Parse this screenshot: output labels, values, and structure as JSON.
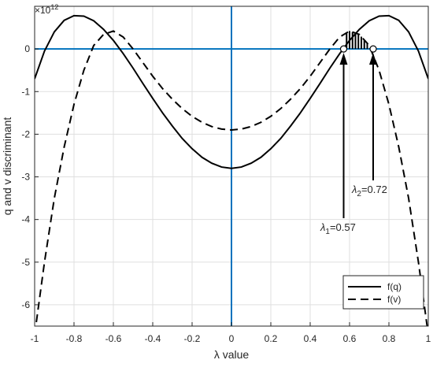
{
  "chart_data": {
    "type": "line",
    "xlabel": "λ value",
    "ylabel": "q and v discriminant",
    "y_exponent": {
      "base": "×10",
      "power": "12"
    },
    "x": [
      -1,
      -0.95,
      -0.9,
      -0.85,
      -0.8,
      -0.75,
      -0.7,
      -0.65,
      -0.6,
      -0.55,
      -0.5,
      -0.45,
      -0.4,
      -0.35,
      -0.3,
      -0.25,
      -0.2,
      -0.15,
      -0.1,
      -0.05,
      0,
      0.05,
      0.1,
      0.15,
      0.2,
      0.25,
      0.3,
      0.35,
      0.4,
      0.45,
      0.5,
      0.55,
      0.6,
      0.65,
      0.7,
      0.75,
      0.8,
      0.85,
      0.9,
      0.95,
      1
    ],
    "series": [
      {
        "name": "f(q)",
        "color": "#000000",
        "dash": false,
        "values": [
          -0.7,
          -0.05,
          0.4,
          0.67,
          0.78,
          0.77,
          0.66,
          0.46,
          0.2,
          -0.11,
          -0.45,
          -0.81,
          -1.16,
          -1.5,
          -1.81,
          -2.1,
          -2.34,
          -2.54,
          -2.68,
          -2.77,
          -2.8,
          -2.77,
          -2.68,
          -2.54,
          -2.34,
          -2.1,
          -1.81,
          -1.5,
          -1.16,
          -0.81,
          -0.45,
          -0.11,
          0.2,
          0.46,
          0.66,
          0.77,
          0.78,
          0.67,
          0.4,
          -0.05,
          -0.7
        ]
      },
      {
        "name": "f(v)",
        "color": "#000000",
        "dash": true,
        "values": [
          -6.7,
          -5.0,
          -3.5,
          -2.3,
          -1.3,
          -0.5,
          0.08,
          0.34,
          0.42,
          0.28,
          0.0,
          -0.32,
          -0.64,
          -0.93,
          -1.18,
          -1.4,
          -1.58,
          -1.72,
          -1.82,
          -1.88,
          -1.9,
          -1.88,
          -1.82,
          -1.72,
          -1.58,
          -1.4,
          -1.18,
          -0.93,
          -0.64,
          -0.32,
          0.0,
          0.28,
          0.42,
          0.34,
          0.08,
          -0.5,
          -1.3,
          -2.3,
          -3.5,
          -5.0,
          -6.7
        ]
      }
    ],
    "annotations": [
      {
        "symbol": "λ",
        "subscript": "1",
        "text": "=0.57",
        "x": 0.57,
        "y": 0
      },
      {
        "symbol": "λ",
        "subscript": "2",
        "text": "=0.72",
        "x": 0.72,
        "y": 0
      }
    ],
    "xlim": [
      -1,
      1
    ],
    "ylim": [
      -6.5,
      1
    ],
    "xticks": [
      -1,
      -0.8,
      -0.6,
      -0.4,
      -0.2,
      0,
      0.2,
      0.4,
      0.6,
      0.8,
      1
    ],
    "yticks": [
      -6,
      -5,
      -4,
      -3,
      -2,
      -1,
      0
    ],
    "grid": true,
    "axis_line_color": "#0072bd",
    "legend": "lower right"
  }
}
